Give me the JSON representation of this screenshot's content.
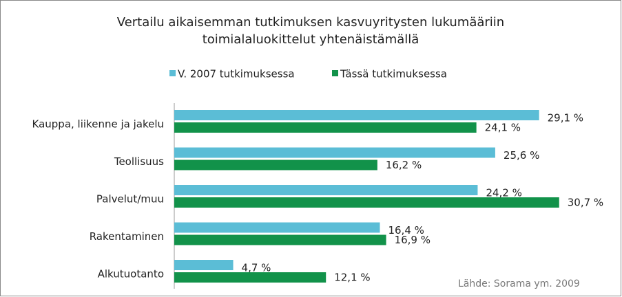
{
  "chart_data": {
    "type": "hbar",
    "title": [
      "Vertailu aikaisemman tutkimuksen kasvuyritysten lukumääriin",
      "toimialaluokittelut yhtenäistämällä"
    ],
    "categories": [
      "Kauppa, liikenne ja jakelu",
      "Teollisuus",
      "Palvelut/muu",
      "Rakentaminen",
      "Alkutuotanto"
    ],
    "series": [
      {
        "name": "V. 2007 tutkimuksessa",
        "color": "#5bbdd6",
        "values": [
          29.1,
          25.6,
          24.2,
          16.4,
          4.7
        ],
        "value_labels": [
          "29,1 %",
          "25,6 %",
          "24,2 %",
          "16,4 %",
          "4,7 %"
        ]
      },
      {
        "name": "Tässä tutkimuksessa",
        "color": "#12924a",
        "values": [
          24.1,
          16.2,
          30.7,
          16.9,
          12.1
        ],
        "value_labels": [
          "24,1 %",
          "16,2 %",
          "30,7 %",
          "16,9 %",
          "12,1 %"
        ]
      }
    ],
    "legend": "top",
    "source": "Lähde: Sorama ym. 2009"
  }
}
